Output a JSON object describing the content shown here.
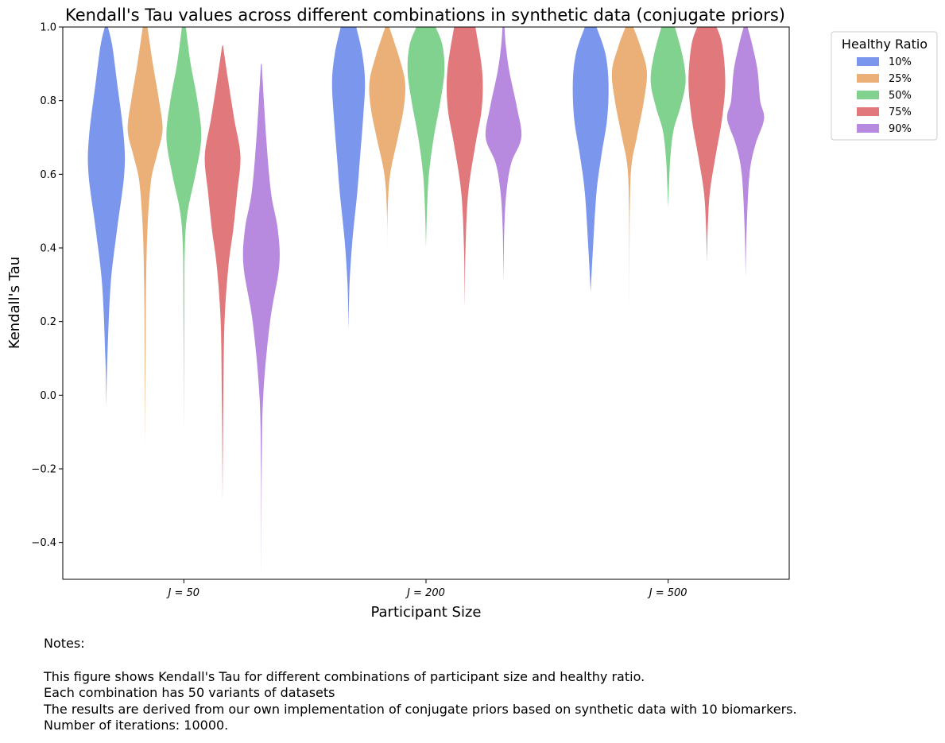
{
  "chart_data": {
    "type": "violin",
    "title": "Kendall's Tau values across different combinations in synthetic data (conjugate priors)",
    "xlabel": "Participant Size",
    "ylabel": "Kendall's Tau",
    "ylim": [
      -0.5,
      1.0
    ],
    "yticks": [
      "−0.4",
      "−0.2",
      "0.0",
      "0.2",
      "0.4",
      "0.6",
      "0.8",
      "1.0"
    ],
    "ytick_values": [
      -0.4,
      -0.2,
      0.0,
      0.2,
      0.4,
      0.6,
      0.8,
      1.0
    ],
    "categories": [
      "J = 50",
      "J = 200",
      "J = 500"
    ],
    "legend": {
      "title": "Healthy Ratio",
      "position": "upper right, outside plot"
    },
    "series": [
      {
        "name": "10%",
        "color": "#7b96ed",
        "violins": [
          {
            "min": -0.03,
            "max": 1.0,
            "profile": [
              [
                -0.03,
                0
              ],
              [
                0.1,
                0.05
              ],
              [
                0.3,
                0.22
              ],
              [
                0.45,
                0.55
              ],
              [
                0.6,
                0.92
              ],
              [
                0.7,
                0.9
              ],
              [
                0.85,
                0.55
              ],
              [
                0.95,
                0.3
              ],
              [
                1.0,
                0.08
              ]
            ]
          },
          {
            "min": 0.18,
            "max": 1.0,
            "profile": [
              [
                0.18,
                0
              ],
              [
                0.3,
                0.05
              ],
              [
                0.42,
                0.2
              ],
              [
                0.55,
                0.45
              ],
              [
                0.65,
                0.6
              ],
              [
                0.75,
                0.75
              ],
              [
                0.85,
                0.85
              ],
              [
                0.93,
                0.7
              ],
              [
                1.0,
                0.4
              ]
            ]
          },
          {
            "min": 0.28,
            "max": 1.0,
            "profile": [
              [
                0.28,
                0
              ],
              [
                0.4,
                0.12
              ],
              [
                0.55,
                0.3
              ],
              [
                0.65,
                0.55
              ],
              [
                0.75,
                0.85
              ],
              [
                0.85,
                0.92
              ],
              [
                0.93,
                0.75
              ],
              [
                1.0,
                0.3
              ]
            ]
          }
        ]
      },
      {
        "name": "25%",
        "color": "#ebb077",
        "violins": [
          {
            "min": -0.14,
            "max": 1.0,
            "profile": [
              [
                -0.14,
                0
              ],
              [
                0.1,
                0.02
              ],
              [
                0.3,
                0.05
              ],
              [
                0.45,
                0.12
              ],
              [
                0.58,
                0.3
              ],
              [
                0.65,
                0.6
              ],
              [
                0.72,
                0.9
              ],
              [
                0.8,
                0.72
              ],
              [
                0.9,
                0.4
              ],
              [
                1.0,
                0.12
              ]
            ]
          },
          {
            "min": 0.37,
            "max": 1.0,
            "profile": [
              [
                0.37,
                0
              ],
              [
                0.5,
                0.02
              ],
              [
                0.6,
                0.15
              ],
              [
                0.7,
                0.55
              ],
              [
                0.78,
                0.85
              ],
              [
                0.85,
                0.92
              ],
              [
                0.92,
                0.6
              ],
              [
                1.0,
                0.1
              ]
            ]
          },
          {
            "min": 0.25,
            "max": 1.0,
            "profile": [
              [
                0.25,
                0
              ],
              [
                0.5,
                0.02
              ],
              [
                0.62,
                0.1
              ],
              [
                0.7,
                0.38
              ],
              [
                0.8,
                0.75
              ],
              [
                0.88,
                0.9
              ],
              [
                0.95,
                0.55
              ],
              [
                1.0,
                0.2
              ]
            ]
          }
        ]
      },
      {
        "name": "50%",
        "color": "#82d28f",
        "violins": [
          {
            "min": -0.09,
            "max": 1.0,
            "profile": [
              [
                -0.09,
                0
              ],
              [
                0.2,
                0.02
              ],
              [
                0.4,
                0.05
              ],
              [
                0.5,
                0.2
              ],
              [
                0.6,
                0.6
              ],
              [
                0.7,
                0.9
              ],
              [
                0.8,
                0.7
              ],
              [
                0.9,
                0.35
              ],
              [
                1.0,
                0.1
              ]
            ]
          },
          {
            "min": 0.4,
            "max": 1.0,
            "profile": [
              [
                0.4,
                0
              ],
              [
                0.5,
                0.05
              ],
              [
                0.6,
                0.15
              ],
              [
                0.7,
                0.4
              ],
              [
                0.8,
                0.75
              ],
              [
                0.88,
                0.95
              ],
              [
                0.95,
                0.85
              ],
              [
                1.0,
                0.5
              ]
            ]
          },
          {
            "min": 0.51,
            "max": 1.0,
            "profile": [
              [
                0.51,
                0
              ],
              [
                0.58,
                0.05
              ],
              [
                0.65,
                0.12
              ],
              [
                0.72,
                0.28
              ],
              [
                0.78,
                0.62
              ],
              [
                0.85,
                0.9
              ],
              [
                0.92,
                0.75
              ],
              [
                1.0,
                0.35
              ]
            ]
          }
        ]
      },
      {
        "name": "75%",
        "color": "#e1787c",
        "violins": [
          {
            "min": -0.29,
            "max": 0.95,
            "profile": [
              [
                -0.29,
                0
              ],
              [
                0.0,
                0.04
              ],
              [
                0.2,
                0.1
              ],
              [
                0.35,
                0.3
              ],
              [
                0.45,
                0.55
              ],
              [
                0.55,
                0.75
              ],
              [
                0.65,
                0.92
              ],
              [
                0.75,
                0.6
              ],
              [
                0.85,
                0.3
              ],
              [
                0.95,
                0
              ]
            ]
          },
          {
            "min": 0.24,
            "max": 1.0,
            "profile": [
              [
                0.24,
                0
              ],
              [
                0.4,
                0.04
              ],
              [
                0.55,
                0.18
              ],
              [
                0.68,
                0.55
              ],
              [
                0.78,
                0.88
              ],
              [
                0.88,
                0.9
              ],
              [
                1.0,
                0.55
              ]
            ]
          },
          {
            "min": 0.36,
            "max": 1.0,
            "profile": [
              [
                0.36,
                0
              ],
              [
                0.45,
                0.04
              ],
              [
                0.55,
                0.15
              ],
              [
                0.65,
                0.45
              ],
              [
                0.75,
                0.78
              ],
              [
                0.85,
                0.95
              ],
              [
                0.95,
                0.8
              ],
              [
                1.0,
                0.5
              ]
            ]
          }
        ]
      },
      {
        "name": "90%",
        "color": "#b78ae0",
        "violins": [
          {
            "min": -0.5,
            "max": 0.9,
            "profile": [
              [
                -0.5,
                0
              ],
              [
                -0.2,
                0.02
              ],
              [
                0.0,
                0.1
              ],
              [
                0.2,
                0.45
              ],
              [
                0.35,
                0.92
              ],
              [
                0.45,
                0.85
              ],
              [
                0.55,
                0.5
              ],
              [
                0.7,
                0.25
              ],
              [
                0.9,
                0
              ]
            ]
          },
          {
            "min": 0.31,
            "max": 1.0,
            "profile": [
              [
                0.31,
                0
              ],
              [
                0.45,
                0.04
              ],
              [
                0.55,
                0.15
              ],
              [
                0.63,
                0.4
              ],
              [
                0.7,
                0.92
              ],
              [
                0.78,
                0.7
              ],
              [
                0.88,
                0.3
              ],
              [
                0.95,
                0.12
              ],
              [
                1.0,
                0.05
              ]
            ]
          },
          {
            "min": 0.32,
            "max": 1.0,
            "profile": [
              [
                0.32,
                0
              ],
              [
                0.45,
                0.05
              ],
              [
                0.6,
                0.2
              ],
              [
                0.68,
                0.5
              ],
              [
                0.75,
                0.95
              ],
              [
                0.8,
                0.75
              ],
              [
                0.88,
                0.62
              ],
              [
                0.95,
                0.35
              ],
              [
                1.0,
                0.1
              ]
            ]
          }
        ]
      }
    ]
  },
  "notes": {
    "heading": "Notes:",
    "lines": [
      "This figure shows Kendall's Tau for different combinations of participant size and healthy ratio.",
      "Each combination has 50 variants of datasets",
      "The results are derived from our own implementation of conjugate priors based on synthetic data with 10 biomarkers.",
      "Number of iterations: 10000."
    ]
  }
}
